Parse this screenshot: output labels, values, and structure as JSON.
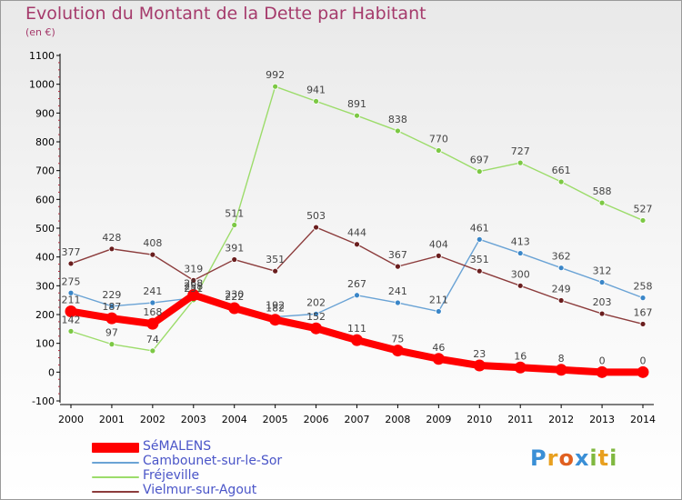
{
  "header": {
    "title": "Evolution du Montant de la Dette par Habitant",
    "subtitle": "(en €)"
  },
  "colors": {
    "title": "#a53a6b",
    "legend_text": "#4a55c8",
    "axis": "#000000"
  },
  "logo": {
    "text": "Proxiti",
    "letters": [
      {
        "ch": "P",
        "color": "#3a8fd6"
      },
      {
        "ch": "r",
        "color": "#e8a020"
      },
      {
        "ch": "o",
        "color": "#e06020"
      },
      {
        "ch": "x",
        "color": "#3a8fd6"
      },
      {
        "ch": "i",
        "color": "#80b840"
      },
      {
        "ch": "t",
        "color": "#e8a020"
      },
      {
        "ch": "i",
        "color": "#80b840"
      }
    ]
  },
  "chart_data": {
    "type": "line",
    "title": "Evolution du Montant de la Dette par Habitant",
    "subtitle": "(en €)",
    "xlabel": "",
    "ylabel": "",
    "x": [
      2000,
      2001,
      2002,
      2003,
      2004,
      2005,
      2006,
      2007,
      2008,
      2009,
      2010,
      2011,
      2012,
      2013,
      2014
    ],
    "ylim": [
      -100,
      1100
    ],
    "yticks": [
      -100,
      0,
      100,
      200,
      300,
      400,
      500,
      600,
      700,
      800,
      900,
      1000,
      1100
    ],
    "grid": false,
    "legend_position": "bottom-left",
    "series": [
      {
        "name": "SéMALENS",
        "color": "#ff0000",
        "marker": "#ff0000",
        "emphasis": true,
        "values": [
          211,
          187,
          168,
          268,
          222,
          182,
          152,
          111,
          75,
          46,
          23,
          16,
          8,
          0,
          0
        ],
        "labels": [
          "211",
          "187",
          "168",
          "268",
          "222",
          "182",
          "152",
          "111",
          "75",
          "46",
          "23",
          "16",
          "8",
          "0",
          "0"
        ]
      },
      {
        "name": "Cambounet-sur-le-Sor",
        "color": "#6aa3d5",
        "marker": "#3a86c8",
        "values": [
          275,
          229,
          241,
          258,
          230,
          192,
          202,
          267,
          241,
          211,
          461,
          413,
          362,
          312,
          258
        ],
        "labels": [
          "275",
          "229",
          "241",
          "258",
          "230",
          "192",
          "202",
          "267",
          "241",
          "211",
          "461",
          "413",
          "362",
          "312",
          "258"
        ]
      },
      {
        "name": "Fréjeville",
        "color": "#9cdc6a",
        "marker": "#7cc844",
        "values": [
          142,
          97,
          74,
          251,
          511,
          992,
          941,
          891,
          838,
          770,
          697,
          727,
          661,
          588,
          527
        ],
        "labels": [
          "142",
          "97",
          "74",
          "251",
          "511",
          "992",
          "941",
          "891",
          "838",
          "770",
          "697",
          "727",
          "661",
          "588",
          "527"
        ]
      },
      {
        "name": "Vielmur-sur-Agout",
        "color": "#8c3c3c",
        "marker": "#6a1e1e",
        "values": [
          377,
          428,
          408,
          319,
          391,
          351,
          503,
          444,
          367,
          404,
          351,
          300,
          249,
          203,
          167
        ],
        "labels": [
          "377",
          "428",
          "408",
          "319",
          "391",
          "351",
          "503",
          "444",
          "367",
          "404",
          "351",
          "300",
          "249",
          "203",
          "167"
        ]
      }
    ]
  }
}
